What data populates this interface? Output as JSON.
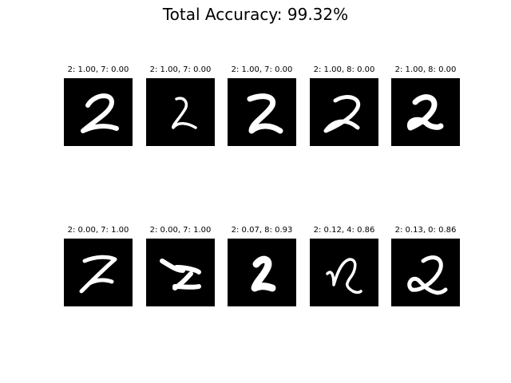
{
  "figure": {
    "title": "Total Accuracy: 99.32%"
  },
  "chart_data": {
    "type": "image-grid",
    "title": "Total Accuracy: 99.32%",
    "rows": 2,
    "cols": 5,
    "panels": [
      {
        "title": "2: 1.00, 7: 0.00",
        "true_label": "2",
        "true_prob": 1.0,
        "other_label": "7",
        "other_prob": 0.0,
        "digit_shown": "2"
      },
      {
        "title": "2: 1.00, 7: 0.00",
        "true_label": "2",
        "true_prob": 1.0,
        "other_label": "7",
        "other_prob": 0.0,
        "digit_shown": "2"
      },
      {
        "title": "2: 1.00, 7: 0.00",
        "true_label": "2",
        "true_prob": 1.0,
        "other_label": "7",
        "other_prob": 0.0,
        "digit_shown": "2"
      },
      {
        "title": "2: 1.00, 8: 0.00",
        "true_label": "2",
        "true_prob": 1.0,
        "other_label": "8",
        "other_prob": 0.0,
        "digit_shown": "2"
      },
      {
        "title": "2: 1.00, 8: 0.00",
        "true_label": "2",
        "true_prob": 1.0,
        "other_label": "8",
        "other_prob": 0.0,
        "digit_shown": "2"
      },
      {
        "title": "2: 0.00, 7: 1.00",
        "true_label": "2",
        "true_prob": 0.0,
        "other_label": "7",
        "other_prob": 1.0,
        "digit_shown": "2"
      },
      {
        "title": "2: 0.00, 7: 1.00",
        "true_label": "2",
        "true_prob": 0.0,
        "other_label": "7",
        "other_prob": 1.0,
        "digit_shown": "2"
      },
      {
        "title": "2: 0.07, 8: 0.93",
        "true_label": "2",
        "true_prob": 0.07,
        "other_label": "8",
        "other_prob": 0.93,
        "digit_shown": "2"
      },
      {
        "title": "2: 0.12, 4: 0.86",
        "true_label": "2",
        "true_prob": 0.12,
        "other_label": "4",
        "other_prob": 0.86,
        "digit_shown": "2"
      },
      {
        "title": "2: 0.13, 0: 0.86",
        "true_label": "2",
        "true_prob": 0.13,
        "other_label": "0",
        "other_prob": 0.86,
        "digit_shown": "2"
      }
    ],
    "colors": {
      "image_background": "#000000",
      "stroke": "#ffffff"
    }
  }
}
